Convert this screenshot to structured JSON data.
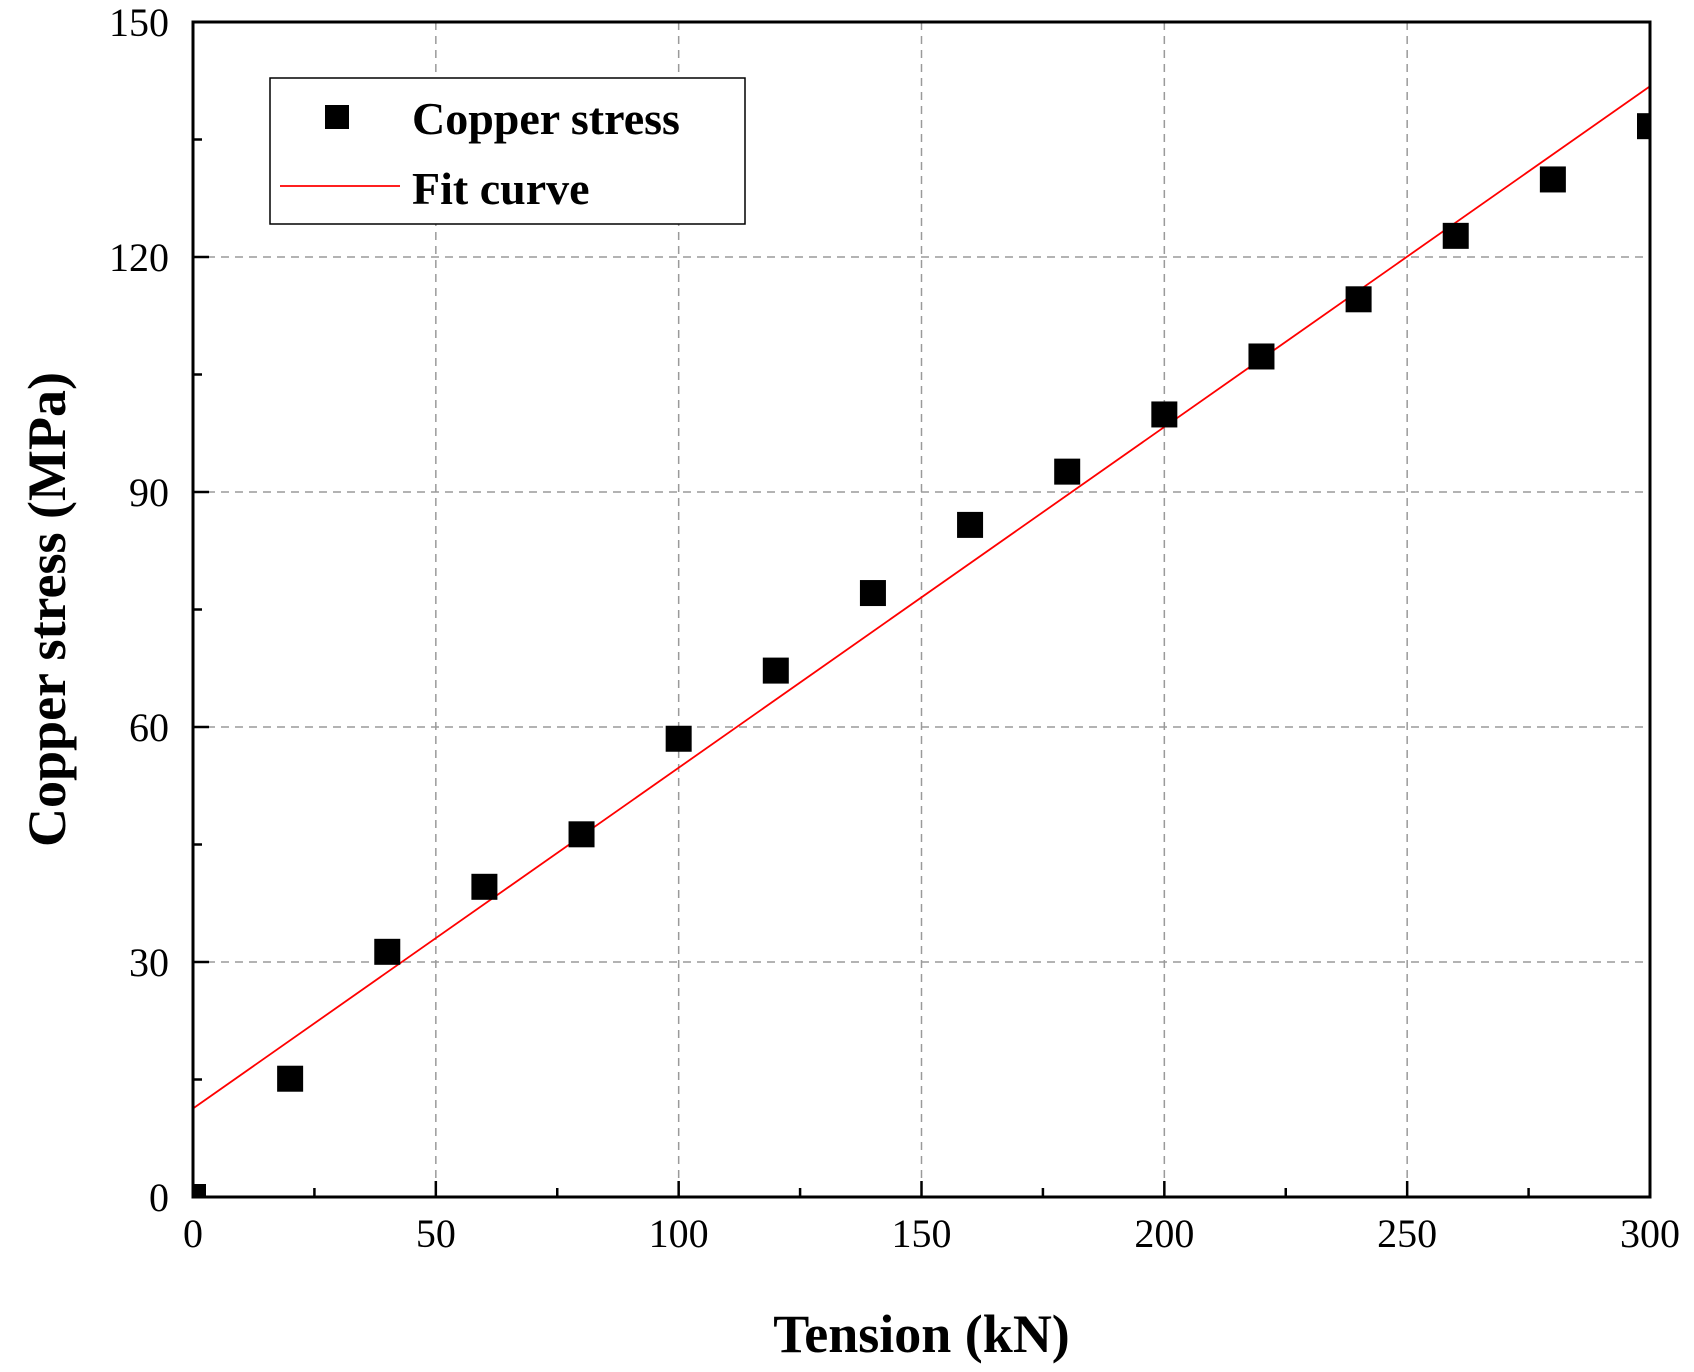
{
  "chart_data": {
    "type": "scatter",
    "xlabel": "Tension (kN)",
    "ylabel": "Copper stress (MPa)",
    "xlim": [
      0,
      300
    ],
    "ylim": [
      0,
      150
    ],
    "x_ticks": [
      0,
      50,
      100,
      150,
      200,
      250,
      300
    ],
    "y_ticks": [
      0,
      30,
      60,
      90,
      120,
      150
    ],
    "x_minor_step": 25,
    "y_minor_step": 15,
    "grid": true,
    "legend_position": "top-left",
    "series": [
      {
        "name": "Copper stress",
        "kind": "scatter",
        "marker": "square",
        "color": "#000000",
        "x": [
          0,
          20,
          40,
          60,
          80,
          100,
          120,
          140,
          160,
          180,
          200,
          220,
          240,
          260,
          280,
          300
        ],
        "y": [
          0,
          15.1,
          31.3,
          39.6,
          46.3,
          58.5,
          67.2,
          77.1,
          85.8,
          92.6,
          99.9,
          107.3,
          114.6,
          122.7,
          129.9,
          136.7
        ]
      },
      {
        "name": "Fit curve",
        "kind": "line",
        "color": "#ff0000",
        "x": [
          0,
          300
        ],
        "y": [
          11.3,
          141.8
        ]
      }
    ]
  }
}
